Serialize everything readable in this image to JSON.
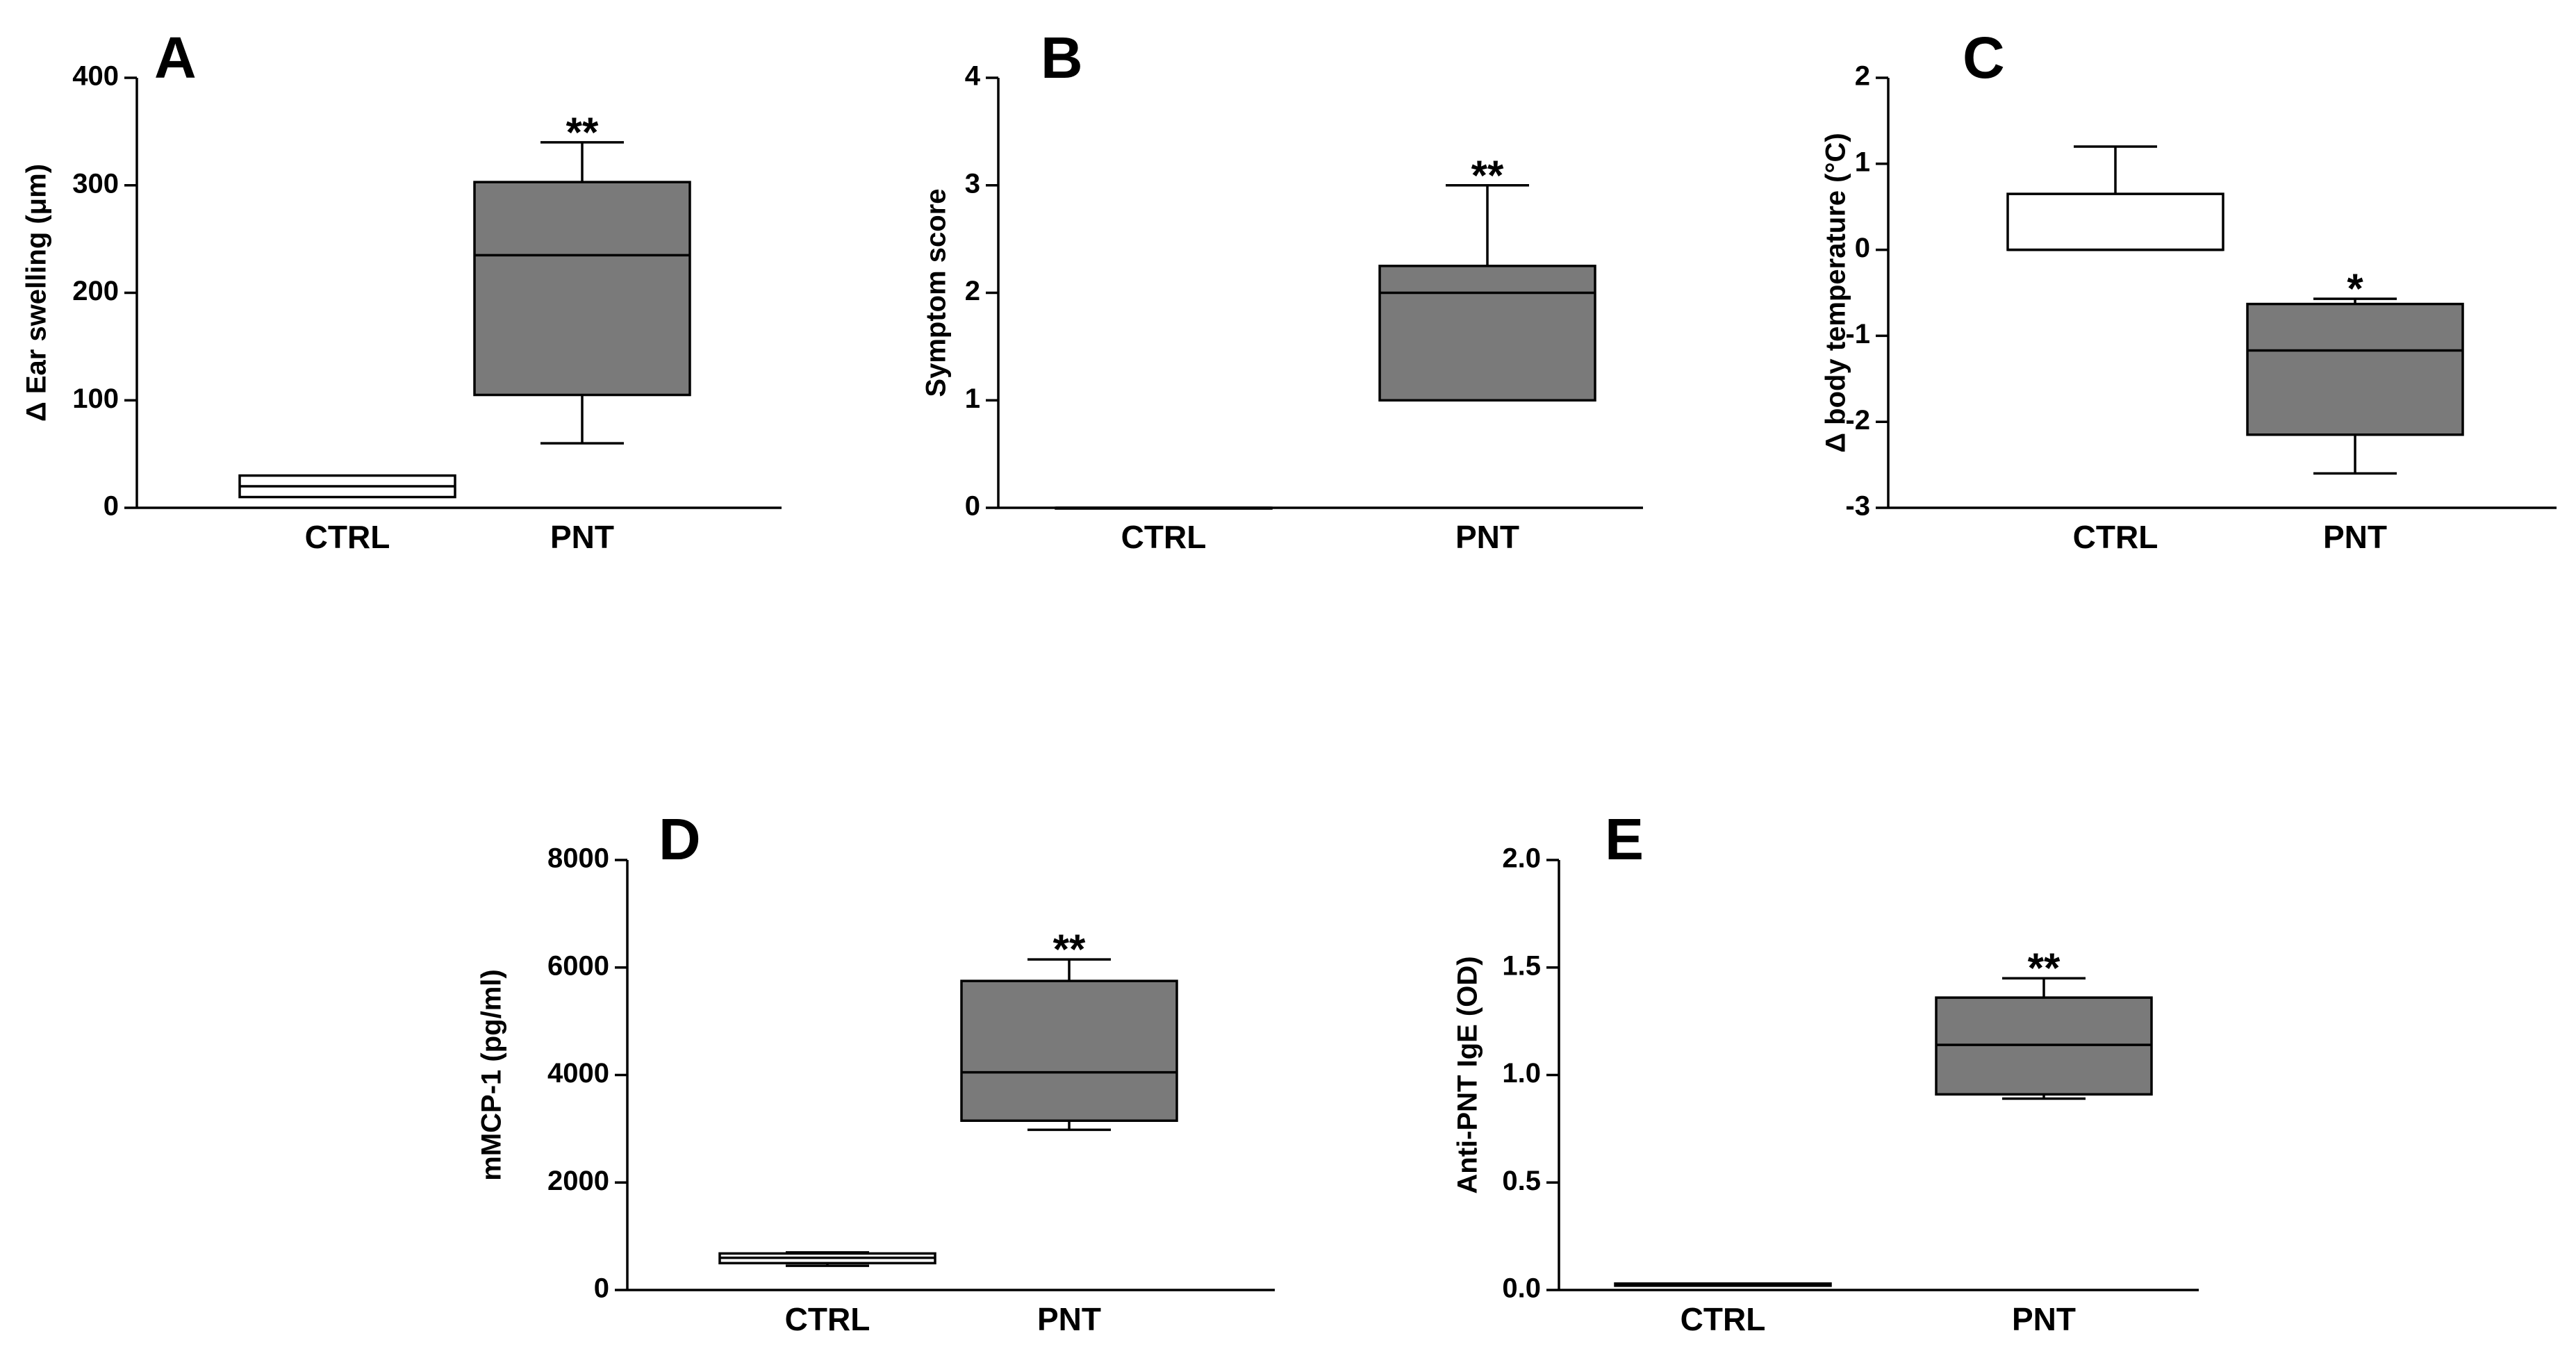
{
  "colors": {
    "ctrl_fill": "#ffffff",
    "pnt_fill": "#7a7a7a",
    "stroke": "#000000"
  },
  "chart_data": [
    {
      "type": "box",
      "panel": "A",
      "title": "",
      "ylabel": "Δ Ear swelling (μm)",
      "ylim": [
        0,
        400
      ],
      "yticks": [
        "0",
        "100",
        "200",
        "300",
        "400"
      ],
      "categories": [
        "CTRL",
        "PNT"
      ],
      "boxes": [
        {
          "group": "CTRL",
          "min": 10,
          "q1": 10,
          "median": 20,
          "q3": 30,
          "max": 30,
          "sig": ""
        },
        {
          "group": "PNT",
          "min": 60,
          "q1": 105,
          "median": 235,
          "q3": 303,
          "max": 340,
          "sig": "**"
        }
      ]
    },
    {
      "type": "box",
      "panel": "B",
      "title": "",
      "ylabel": "Symptom score",
      "ylim": [
        0,
        4
      ],
      "yticks": [
        "0",
        "1",
        "2",
        "3",
        "4"
      ],
      "categories": [
        "CTRL",
        "PNT"
      ],
      "boxes": [
        {
          "group": "CTRL",
          "min": 0,
          "q1": 0,
          "median": 0,
          "q3": 0,
          "max": 0,
          "sig": ""
        },
        {
          "group": "PNT",
          "min": 1,
          "q1": 1,
          "median": 2,
          "q3": 2.25,
          "max": 3,
          "sig": "**"
        }
      ]
    },
    {
      "type": "box",
      "panel": "C",
      "title": "",
      "ylabel": "Δ body temperature (°C)",
      "ylim": [
        -3,
        2
      ],
      "yticks": [
        "-3",
        "-2",
        "-1",
        "0",
        "1",
        "2"
      ],
      "categories": [
        "CTRL",
        "PNT"
      ],
      "boxes": [
        {
          "group": "CTRL",
          "min": 0,
          "q1": 0,
          "median": 0,
          "q3": 0.65,
          "max": 1.2,
          "sig": ""
        },
        {
          "group": "PNT",
          "min": -2.6,
          "q1": -2.15,
          "median": -1.17,
          "q3": -0.63,
          "max": -0.57,
          "sig": "*"
        }
      ]
    },
    {
      "type": "box",
      "panel": "D",
      "title": "",
      "ylabel": "mMCP-1 (pg/ml)",
      "ylim": [
        0,
        8000
      ],
      "yticks": [
        "0",
        "2000",
        "4000",
        "6000",
        "8000"
      ],
      "categories": [
        "CTRL",
        "PNT"
      ],
      "boxes": [
        {
          "group": "CTRL",
          "min": 450,
          "q1": 500,
          "median": 600,
          "q3": 680,
          "max": 700,
          "sig": ""
        },
        {
          "group": "PNT",
          "min": 2980,
          "q1": 3150,
          "median": 4050,
          "q3": 5750,
          "max": 6150,
          "sig": "**"
        }
      ]
    },
    {
      "type": "box",
      "panel": "E",
      "title": "",
      "ylabel": "Anti-PNT IgE (OD)",
      "ylim": [
        0,
        2.0
      ],
      "yticks": [
        "0.0",
        "0.5",
        "1.0",
        "1.5",
        "2.0"
      ],
      "categories": [
        "CTRL",
        "PNT"
      ],
      "boxes": [
        {
          "group": "CTRL",
          "min": 0.02,
          "q1": 0.02,
          "median": 0.025,
          "q3": 0.03,
          "max": 0.03,
          "sig": ""
        },
        {
          "group": "PNT",
          "min": 0.89,
          "q1": 0.91,
          "median": 1.14,
          "q3": 1.36,
          "max": 1.45,
          "sig": "**"
        }
      ]
    }
  ]
}
